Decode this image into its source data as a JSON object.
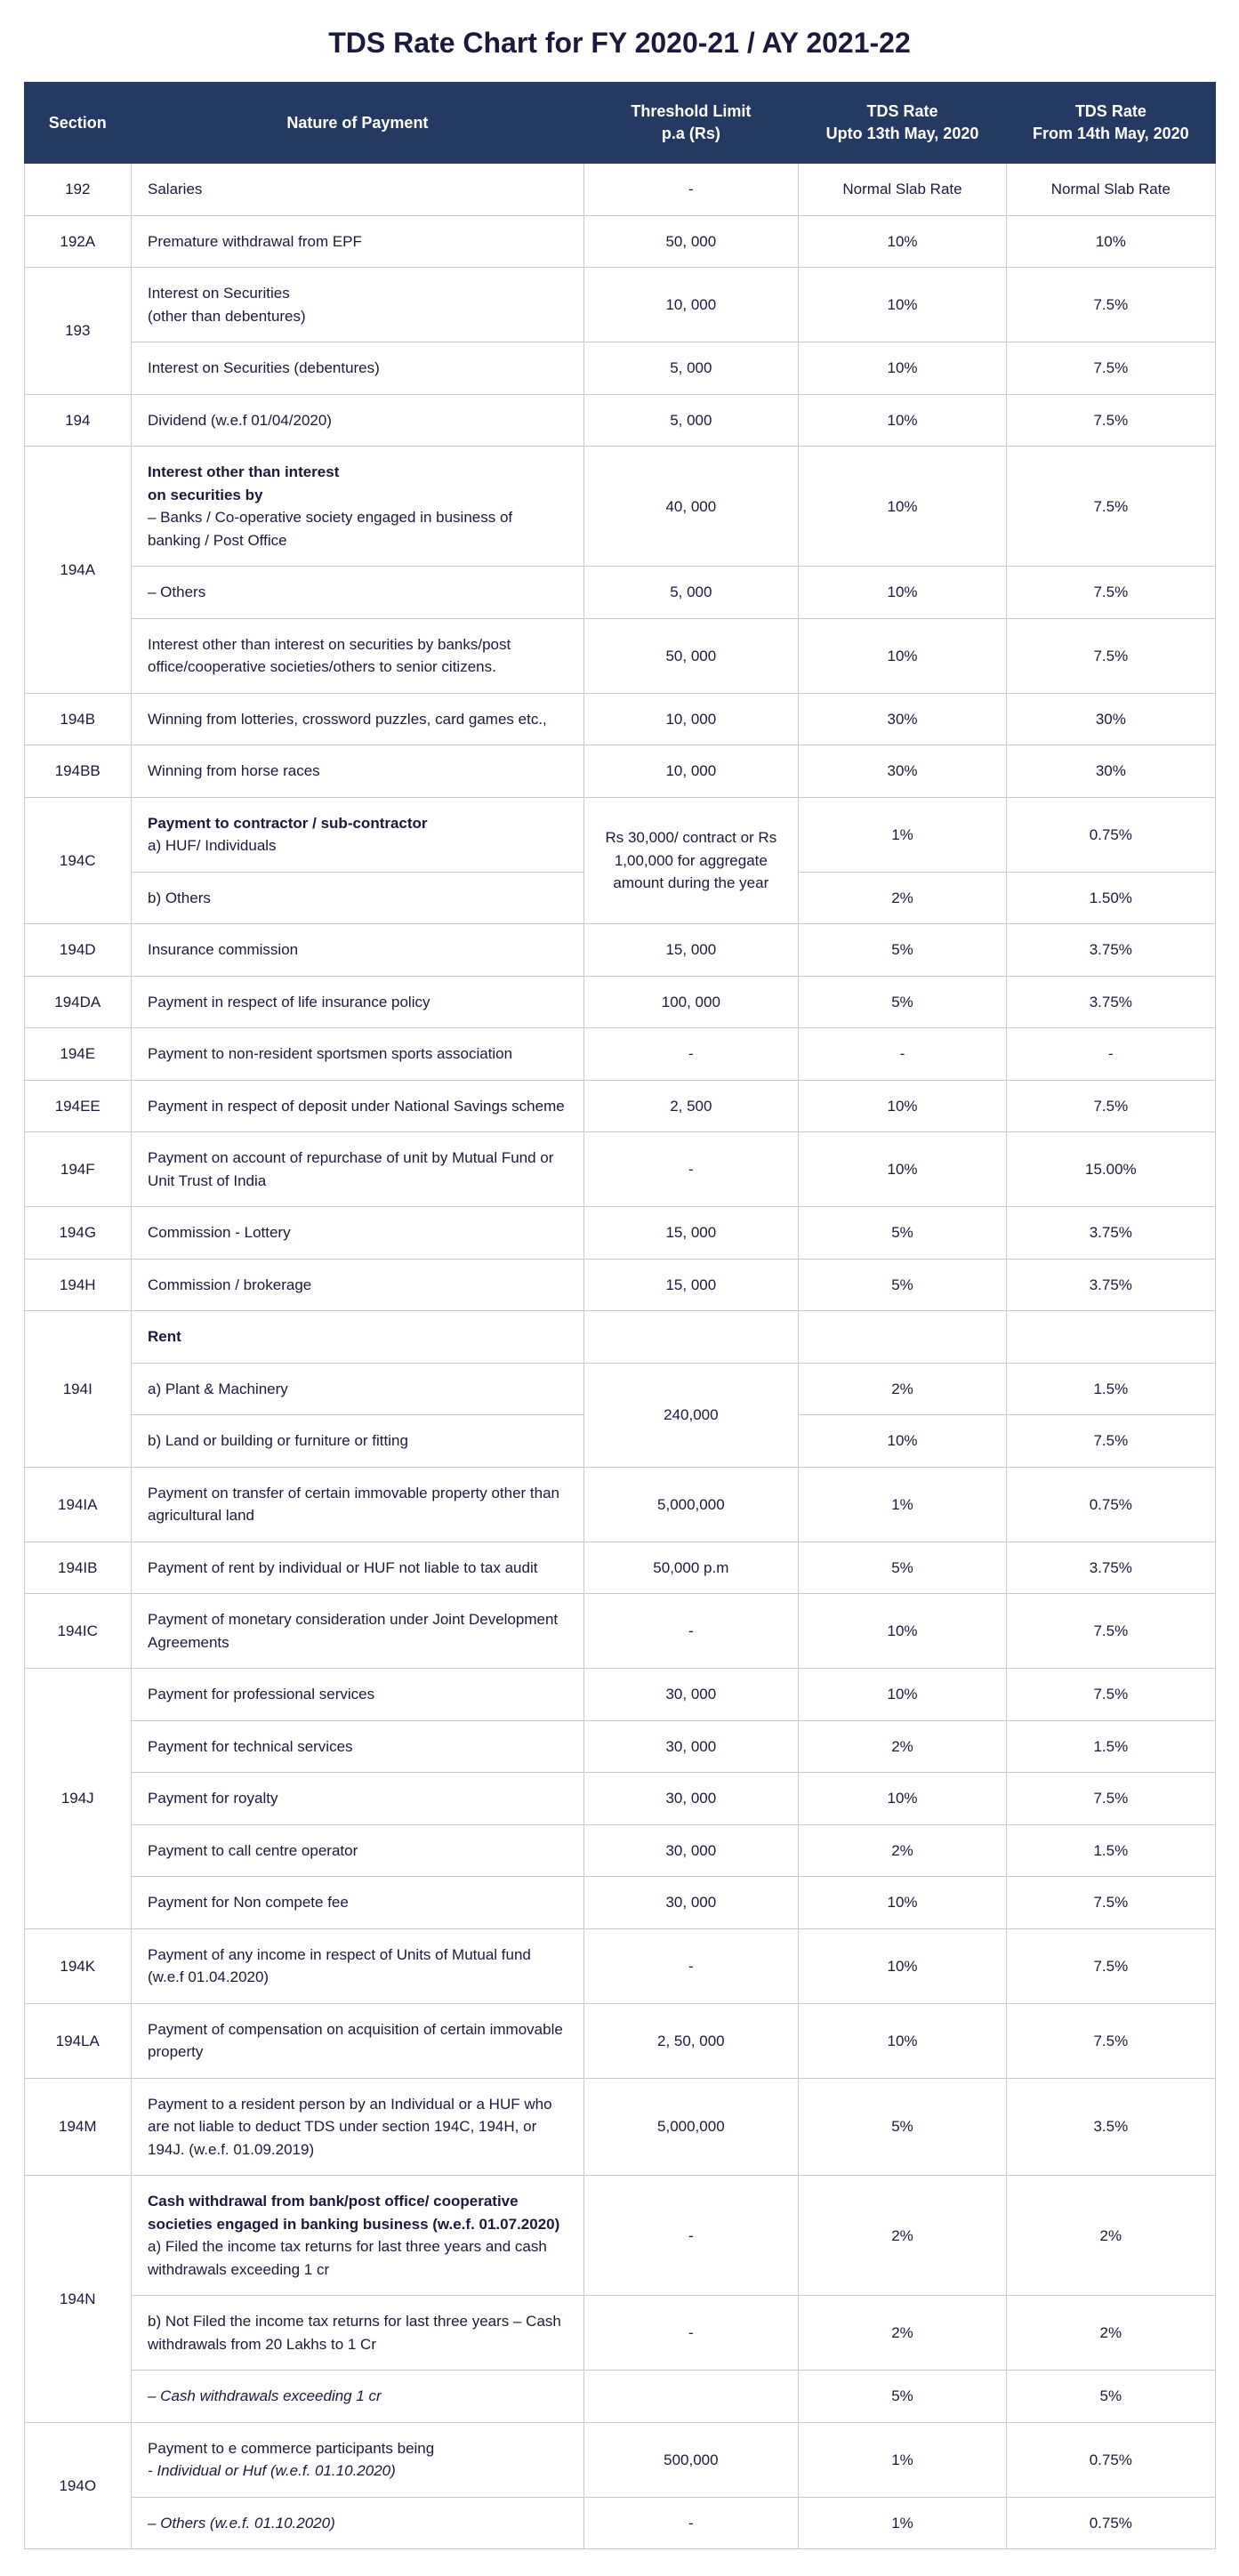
{
  "title": "TDS Rate Chart for FY 2020-21 / AY 2021-22",
  "colors": {
    "header_bg": "#253a62",
    "header_text": "#ffffff",
    "border": "#c8c8d0",
    "text": "#1a1a3a",
    "bg": "#ffffff"
  },
  "columns": [
    {
      "key": "section",
      "label": "Section"
    },
    {
      "key": "nature",
      "label": "Nature of Payment"
    },
    {
      "key": "threshold",
      "label": "Threshold Limit\np.a (Rs)"
    },
    {
      "key": "rate_upto",
      "label": "TDS Rate\nUpto 13th May, 2020"
    },
    {
      "key": "rate_from",
      "label": "TDS Rate\nFrom 14th May, 2020"
    }
  ],
  "rows": [
    {
      "section": "192",
      "nature": "Salaries",
      "threshold": "-",
      "rate_upto": "Normal Slab Rate",
      "rate_from": "Normal Slab Rate"
    },
    {
      "section": "192A",
      "nature": "Premature withdrawal from EPF",
      "threshold": "50, 000",
      "rate_upto": "10%",
      "rate_from": "10%"
    },
    {
      "section": "193",
      "section_rowspan": 2,
      "nature": "Interest on Securities\n(other than debentures)",
      "threshold": "10, 000",
      "rate_upto": "10%",
      "rate_from": "7.5%"
    },
    {
      "nature": "Interest on Securities (debentures)",
      "threshold": "5, 000",
      "rate_upto": "10%",
      "rate_from": "7.5%"
    },
    {
      "section": "194",
      "nature": "Dividend (w.e.f 01/04/2020)",
      "threshold": "5, 000",
      "rate_upto": "10%",
      "rate_from": "7.5%"
    },
    {
      "section": "194A",
      "section_rowspan": 3,
      "nature_html": "<span class=\"bold\">Interest other than interest<br>on securities by</span><br>– Banks / Co-operative society engaged in business of banking / Post Office",
      "threshold": "40, 000",
      "rate_upto": "10%",
      "rate_from": "7.5%"
    },
    {
      "nature": "– Others",
      "threshold": "5, 000",
      "rate_upto": "10%",
      "rate_from": "7.5%"
    },
    {
      "nature": "Interest other than interest on securities by banks/post office/cooperative societies/others to senior citizens.",
      "threshold": "50, 000",
      "rate_upto": "10%",
      "rate_from": "7.5%"
    },
    {
      "section": "194B",
      "nature": "Winning from lotteries, crossword puzzles, card games etc.,",
      "threshold": "10, 000",
      "rate_upto": "30%",
      "rate_from": "30%"
    },
    {
      "section": "194BB",
      "nature": "Winning from horse races",
      "threshold": "10, 000",
      "rate_upto": "30%",
      "rate_from": "30%"
    },
    {
      "section": "194C",
      "section_rowspan": 2,
      "nature_html": "<span class=\"bold\">Payment to contractor / sub-contractor</span><br>a) HUF/ Individuals",
      "threshold": "Rs 30,000/ contract or Rs 1,00,000 for aggregate amount during the year",
      "threshold_rowspan": 2,
      "rate_upto": "1%",
      "rate_from": "0.75%"
    },
    {
      "nature": "b) Others",
      "rate_upto": "2%",
      "rate_from": "1.50%"
    },
    {
      "section": "194D",
      "nature": "Insurance commission",
      "threshold": "15, 000",
      "rate_upto": "5%",
      "rate_from": "3.75%"
    },
    {
      "section": "194DA",
      "nature": "Payment in respect of life insurance policy",
      "threshold": "100, 000",
      "rate_upto": "5%",
      "rate_from": "3.75%"
    },
    {
      "section": "194E",
      "nature": "Payment to non-resident sportsmen sports association",
      "threshold": "-",
      "rate_upto": "-",
      "rate_from": "-"
    },
    {
      "section": "194EE",
      "nature": "Payment in respect of deposit under National Savings scheme",
      "threshold": "2, 500",
      "rate_upto": "10%",
      "rate_from": "7.5%"
    },
    {
      "section": "194F",
      "nature": "Payment on account of repurchase of unit by Mutual Fund or Unit Trust of India",
      "threshold": "-",
      "rate_upto": "10%",
      "rate_from": "15.00%"
    },
    {
      "section": "194G",
      "nature": "Commission - Lottery",
      "threshold": "15, 000",
      "rate_upto": "5%",
      "rate_from": "3.75%"
    },
    {
      "section": "194H",
      "nature": "Commission / brokerage",
      "threshold": "15, 000",
      "rate_upto": "5%",
      "rate_from": "3.75%"
    },
    {
      "section": "194I",
      "section_rowspan": 3,
      "nature_html": "<span class=\"bold\">Rent</span>",
      "threshold": "",
      "rate_upto": "",
      "rate_from": ""
    },
    {
      "nature": "a) Plant & Machinery",
      "threshold": "240,000",
      "threshold_rowspan": 2,
      "rate_upto": "2%",
      "rate_from": "1.5%"
    },
    {
      "nature": "b) Land or building or furniture or fitting",
      "rate_upto": "10%",
      "rate_from": "7.5%"
    },
    {
      "section": "194IA",
      "nature": "Payment on transfer of certain immovable property other than agricultural land",
      "threshold": "5,000,000",
      "rate_upto": "1%",
      "rate_from": "0.75%"
    },
    {
      "section": "194IB",
      "nature": "Payment of rent by individual or HUF not liable to tax audit",
      "threshold": "50,000 p.m",
      "rate_upto": "5%",
      "rate_from": "3.75%"
    },
    {
      "section": "194IC",
      "nature": "Payment of monetary consideration under Joint Development Agreements",
      "threshold": "-",
      "rate_upto": "10%",
      "rate_from": "7.5%"
    },
    {
      "section": "194J",
      "section_rowspan": 5,
      "nature": "Payment for professional services",
      "threshold": "30, 000",
      "rate_upto": "10%",
      "rate_from": "7.5%"
    },
    {
      "nature": "Payment for technical services",
      "threshold": "30, 000",
      "rate_upto": "2%",
      "rate_from": "1.5%"
    },
    {
      "nature": "Payment for royalty",
      "threshold": "30, 000",
      "rate_upto": "10%",
      "rate_from": "7.5%"
    },
    {
      "nature": "Payment to call centre operator",
      "threshold": "30, 000",
      "rate_upto": "2%",
      "rate_from": "1.5%"
    },
    {
      "nature": "Payment for Non compete fee",
      "threshold": "30, 000",
      "rate_upto": "10%",
      "rate_from": "7.5%"
    },
    {
      "section": "194K",
      "nature": "Payment of any income in respect of Units of Mutual fund (w.e.f 01.04.2020)",
      "threshold": "-",
      "rate_upto": "10%",
      "rate_from": "7.5%"
    },
    {
      "section": "194LA",
      "nature": "Payment of compensation on acquisition of certain immovable property",
      "threshold": "2, 50, 000",
      "rate_upto": "10%",
      "rate_from": "7.5%"
    },
    {
      "section": "194M",
      "nature": "Payment to a resident person by an Individual or a HUF who are not liable to deduct TDS under section 194C, 194H, or 194J. (w.e.f. 01.09.2019)",
      "threshold": "5,000,000",
      "rate_upto": "5%",
      "rate_from": "3.5%"
    },
    {
      "section": "194N",
      "section_rowspan": 3,
      "nature_html": "<span class=\"bold\">Cash withdrawal from bank/post office/ cooperative societies engaged in banking business (w.e.f. 01.07.2020)</span><br>a) Filed the income tax returns for last three years and cash withdrawals exceeding 1 cr",
      "threshold": "-",
      "rate_upto": "2%",
      "rate_from": "2%"
    },
    {
      "nature": "b) Not Filed the income tax returns for last three years – Cash withdrawals from 20 Lakhs to 1 Cr",
      "threshold": "-",
      "rate_upto": "2%",
      "rate_from": "2%"
    },
    {
      "nature_html": "<span class=\"ital\">– Cash withdrawals exceeding 1 cr</span>",
      "threshold": "",
      "rate_upto": "5%",
      "rate_from": "5%"
    },
    {
      "section": "194O",
      "section_rowspan": 2,
      "nature_html": "Payment to e commerce participants being<br><span class=\"ital\">- Individual or Huf (w.e.f. 01.10.2020)</span>",
      "threshold": "500,000",
      "rate_upto": "1%",
      "rate_from": "0.75%"
    },
    {
      "nature_html": "<span class=\"ital\">– Others (w.e.f. 01.10.2020)</span>",
      "threshold": "-",
      "rate_upto": "1%",
      "rate_from": "0.75%"
    }
  ]
}
